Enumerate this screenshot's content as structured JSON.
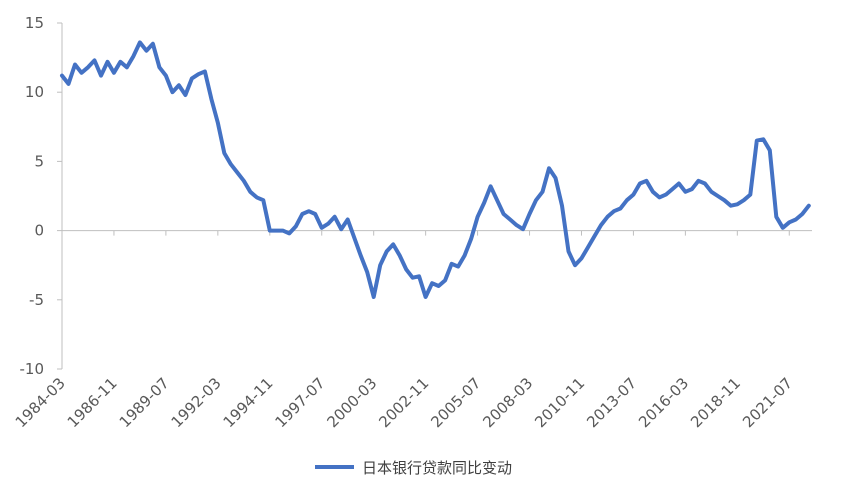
{
  "chart_data": {
    "type": "line",
    "title": "",
    "xlabel": "",
    "ylabel": "",
    "ylim": [
      -10,
      15
    ],
    "y_ticks": [
      15,
      10,
      5,
      0,
      -5,
      -10
    ],
    "y_tick_labels": [
      "15",
      "10",
      "5",
      "0",
      "-5",
      "-10"
    ],
    "x_tick_labels": [
      "1984-03",
      "1986-11",
      "1989-07",
      "1992-03",
      "1994-11",
      "1997-07",
      "2000-03",
      "2002-11",
      "2005-07",
      "2008-03",
      "2010-11",
      "2013-07",
      "2016-03",
      "2018-11",
      "2021-07"
    ],
    "x_range": [
      "1984-03",
      "2022-09"
    ],
    "grid": false,
    "legend_position": "bottom-center",
    "series": [
      {
        "name": "日本银行贷款同比变动",
        "color": "#4472C4",
        "points": [
          [
            "1984-03",
            11.2
          ],
          [
            "1984-07",
            10.6
          ],
          [
            "1984-11",
            12.0
          ],
          [
            "1985-03",
            11.4
          ],
          [
            "1985-07",
            11.8
          ],
          [
            "1985-11",
            12.3
          ],
          [
            "1986-03",
            11.2
          ],
          [
            "1986-07",
            12.2
          ],
          [
            "1986-11",
            11.4
          ],
          [
            "1987-03",
            12.2
          ],
          [
            "1987-07",
            11.8
          ],
          [
            "1987-11",
            12.6
          ],
          [
            "1988-03",
            13.6
          ],
          [
            "1988-07",
            13.0
          ],
          [
            "1988-11",
            13.5
          ],
          [
            "1989-03",
            11.8
          ],
          [
            "1989-07",
            11.2
          ],
          [
            "1989-11",
            10.0
          ],
          [
            "1990-03",
            10.5
          ],
          [
            "1990-07",
            9.8
          ],
          [
            "1990-11",
            11.0
          ],
          [
            "1991-03",
            11.3
          ],
          [
            "1991-07",
            11.5
          ],
          [
            "1991-11",
            9.5
          ],
          [
            "1992-03",
            7.8
          ],
          [
            "1992-07",
            5.6
          ],
          [
            "1992-11",
            4.8
          ],
          [
            "1993-03",
            4.2
          ],
          [
            "1993-07",
            3.6
          ],
          [
            "1993-11",
            2.8
          ],
          [
            "1994-03",
            2.4
          ],
          [
            "1994-07",
            2.2
          ],
          [
            "1994-11",
            0.0
          ],
          [
            "1995-03",
            0.0
          ],
          [
            "1995-07",
            0.0
          ],
          [
            "1995-11",
            -0.2
          ],
          [
            "1996-03",
            0.3
          ],
          [
            "1996-07",
            1.2
          ],
          [
            "1996-11",
            1.4
          ],
          [
            "1997-03",
            1.2
          ],
          [
            "1997-07",
            0.2
          ],
          [
            "1997-11",
            0.5
          ],
          [
            "1998-03",
            1.0
          ],
          [
            "1998-07",
            0.1
          ],
          [
            "1998-11",
            0.8
          ],
          [
            "1999-03",
            -0.5
          ],
          [
            "1999-07",
            -1.8
          ],
          [
            "1999-11",
            -3.0
          ],
          [
            "2000-03",
            -4.8
          ],
          [
            "2000-07",
            -2.5
          ],
          [
            "2000-11",
            -1.5
          ],
          [
            "2001-03",
            -1.0
          ],
          [
            "2001-07",
            -1.8
          ],
          [
            "2001-11",
            -2.8
          ],
          [
            "2002-03",
            -3.4
          ],
          [
            "2002-07",
            -3.3
          ],
          [
            "2002-11",
            -4.8
          ],
          [
            "2003-03",
            -3.8
          ],
          [
            "2003-07",
            -4.0
          ],
          [
            "2003-11",
            -3.6
          ],
          [
            "2004-03",
            -2.4
          ],
          [
            "2004-07",
            -2.6
          ],
          [
            "2004-11",
            -1.8
          ],
          [
            "2005-03",
            -0.6
          ],
          [
            "2005-07",
            1.0
          ],
          [
            "2005-11",
            2.0
          ],
          [
            "2006-03",
            3.2
          ],
          [
            "2006-07",
            2.2
          ],
          [
            "2006-11",
            1.2
          ],
          [
            "2007-03",
            0.8
          ],
          [
            "2007-07",
            0.4
          ],
          [
            "2007-11",
            0.1
          ],
          [
            "2008-03",
            1.2
          ],
          [
            "2008-07",
            2.2
          ],
          [
            "2008-11",
            2.8
          ],
          [
            "2009-03",
            4.5
          ],
          [
            "2009-07",
            3.8
          ],
          [
            "2009-11",
            1.8
          ],
          [
            "2010-03",
            -1.5
          ],
          [
            "2010-07",
            -2.5
          ],
          [
            "2010-11",
            -2.0
          ],
          [
            "2011-03",
            -1.2
          ],
          [
            "2011-07",
            -0.4
          ],
          [
            "2011-11",
            0.4
          ],
          [
            "2012-03",
            1.0
          ],
          [
            "2012-07",
            1.4
          ],
          [
            "2012-11",
            1.6
          ],
          [
            "2013-03",
            2.2
          ],
          [
            "2013-07",
            2.6
          ],
          [
            "2013-11",
            3.4
          ],
          [
            "2014-03",
            3.6
          ],
          [
            "2014-07",
            2.8
          ],
          [
            "2014-11",
            2.4
          ],
          [
            "2015-03",
            2.6
          ],
          [
            "2015-07",
            3.0
          ],
          [
            "2015-11",
            3.4
          ],
          [
            "2016-03",
            2.8
          ],
          [
            "2016-07",
            3.0
          ],
          [
            "2016-11",
            3.6
          ],
          [
            "2017-03",
            3.4
          ],
          [
            "2017-07",
            2.8
          ],
          [
            "2017-11",
            2.5
          ],
          [
            "2018-03",
            2.2
          ],
          [
            "2018-07",
            1.8
          ],
          [
            "2018-11",
            1.9
          ],
          [
            "2019-03",
            2.2
          ],
          [
            "2019-07",
            2.6
          ],
          [
            "2019-11",
            6.5
          ],
          [
            "2020-03",
            6.6
          ],
          [
            "2020-07",
            5.8
          ],
          [
            "2020-11",
            1.0
          ],
          [
            "2021-03",
            0.2
          ],
          [
            "2021-07",
            0.6
          ],
          [
            "2021-11",
            0.8
          ],
          [
            "2022-03",
            1.2
          ],
          [
            "2022-07",
            1.8
          ]
        ]
      }
    ]
  }
}
